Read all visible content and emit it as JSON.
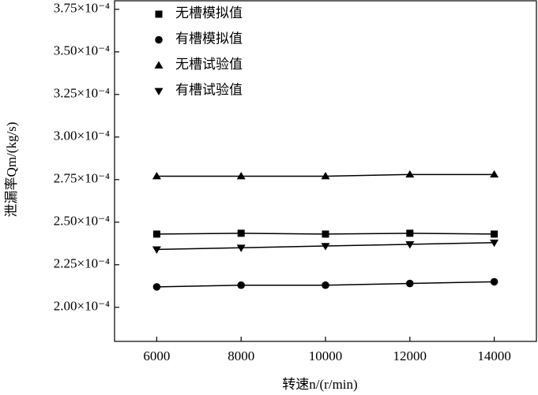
{
  "chart_data": {
    "type": "line",
    "xlabel": "转速n/(r/min)",
    "ylabel": "泄漏率Qm/(kg/s)",
    "x": [
      6000,
      8000,
      10000,
      12000,
      14000
    ],
    "xlim": [
      5000,
      15000
    ],
    "xticks": [
      6000,
      8000,
      10000,
      12000,
      14000
    ],
    "ylim": [
      0.00018,
      0.00038
    ],
    "yticks": [
      {
        "value": 0.0002,
        "label": "2.00×10⁻⁴"
      },
      {
        "value": 0.000225,
        "label": "2.25×10⁻⁴"
      },
      {
        "value": 0.00025,
        "label": "2.50×10⁻⁴"
      },
      {
        "value": 0.000275,
        "label": "2.75×10⁻⁴"
      },
      {
        "value": 0.0003,
        "label": "3.00×10⁻⁴"
      },
      {
        "value": 0.000325,
        "label": "3.25×10⁻⁴"
      },
      {
        "value": 0.00035,
        "label": "3.50×10⁻⁴"
      },
      {
        "value": 0.000375,
        "label": "3.75×10⁻⁴"
      }
    ],
    "legend": "upper left",
    "series": [
      {
        "name": "无槽模拟值",
        "marker": "square",
        "color": "#000000",
        "values": [
          0.000243,
          0.0002435,
          0.000243,
          0.0002435,
          0.000243
        ]
      },
      {
        "name": "有槽模拟值",
        "marker": "circle",
        "color": "#000000",
        "values": [
          0.000212,
          0.000213,
          0.000213,
          0.000214,
          0.000215
        ]
      },
      {
        "name": "无槽试验值",
        "marker": "triangle-up",
        "color": "#000000",
        "values": [
          0.000277,
          0.000277,
          0.000277,
          0.000278,
          0.000278
        ]
      },
      {
        "name": "有槽试验值",
        "marker": "triangle-down",
        "color": "#000000",
        "values": [
          0.000234,
          0.000235,
          0.000236,
          0.000237,
          0.000238
        ]
      }
    ]
  }
}
